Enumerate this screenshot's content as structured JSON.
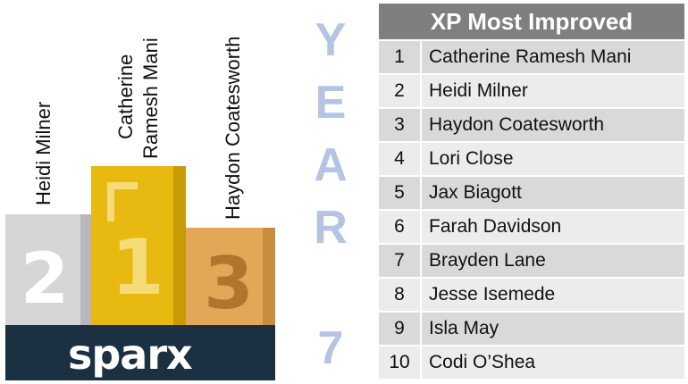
{
  "podium": {
    "first": {
      "place": "1",
      "name_line1": "Catherine",
      "name_line2": "Ramesh Mani"
    },
    "second": {
      "place": "2",
      "name": "Heidi Milner"
    },
    "third": {
      "place": "3",
      "name": "Haydon Coatesworth"
    },
    "logo": "sparx",
    "colors": {
      "gold": "#e8b910",
      "silver": "#d6d6d8",
      "bronze": "#e4a657",
      "logo_bar": "#1b3040"
    }
  },
  "year": {
    "letters": [
      "Y",
      "E",
      "A",
      "R"
    ],
    "number": "7",
    "color": "#b6c4e4"
  },
  "table": {
    "title": "XP Most Improved",
    "rows": [
      {
        "rank": "1",
        "name": "Catherine Ramesh Mani"
      },
      {
        "rank": "2",
        "name": "Heidi Milner"
      },
      {
        "rank": "3",
        "name": "Haydon Coatesworth"
      },
      {
        "rank": "4",
        "name": "Lori Close"
      },
      {
        "rank": "5",
        "name": "Jax Biagott"
      },
      {
        "rank": "6",
        "name": "Farah Davidson"
      },
      {
        "rank": "7",
        "name": "Brayden Lane"
      },
      {
        "rank": "8",
        "name": "Jesse Isemede"
      },
      {
        "rank": "9",
        "name": "Isla May"
      },
      {
        "rank": "10",
        "name": "Codi O’Shea"
      }
    ]
  }
}
